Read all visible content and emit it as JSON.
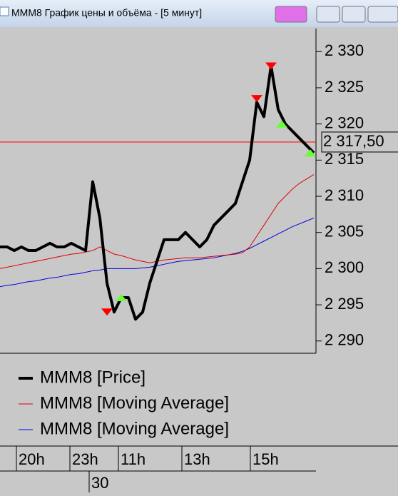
{
  "chart_data": {
    "type": "line",
    "title": "MMM8 График цены и объёма - [5 минут]",
    "x": [
      0,
      1,
      2,
      3,
      4,
      5,
      6,
      7,
      8,
      9,
      10,
      11,
      12,
      13,
      14,
      15,
      16,
      17,
      18,
      19,
      20,
      21,
      22,
      23,
      24,
      25,
      26,
      27,
      28,
      29,
      30,
      31,
      32,
      33,
      34,
      35,
      36,
      37,
      38,
      39,
      40,
      41,
      42,
      43,
      44
    ],
    "series": [
      {
        "name": "MMM8 [Price]",
        "color": "#000000",
        "width": 4,
        "values": [
          2303,
          2303,
          2302.5,
          2303,
          2302.5,
          2302.5,
          2303,
          2303.5,
          2303,
          2303,
          2303.5,
          2303,
          2302.5,
          2312,
          2307,
          2298,
          2294,
          2296,
          2296,
          2293,
          2294,
          2298,
          2301,
          2304,
          2304,
          2304,
          2305,
          2304,
          2303,
          2304,
          2306,
          2307,
          2308,
          2309,
          2312,
          2315,
          2323,
          2321,
          2328,
          2322,
          2320,
          2319,
          2318,
          2317,
          2316
        ]
      },
      {
        "name": "MMM8 [Moving Average]",
        "color": "#e00000",
        "width": 1,
        "values": [
          2300,
          2300.2,
          2300.4,
          2300.6,
          2300.8,
          2301,
          2301.2,
          2301.4,
          2301.6,
          2301.8,
          2302,
          2302.1,
          2302.3,
          2302.5,
          2303,
          2302.5,
          2302,
          2301.8,
          2301.5,
          2301.2,
          2301,
          2300.8,
          2301,
          2301.2,
          2301.3,
          2301.4,
          2301.5,
          2301.5,
          2301.5,
          2301.6,
          2301.7,
          2301.8,
          2301.9,
          2302,
          2302.2,
          2303,
          2304.5,
          2306,
          2307.5,
          2309,
          2310,
          2311,
          2311.8,
          2312.4,
          2313
        ]
      },
      {
        "name": "MMM8 [Moving Average]",
        "color": "#0000e0",
        "width": 1,
        "values": [
          2297.5,
          2297.7,
          2297.8,
          2298,
          2298.2,
          2298.3,
          2298.5,
          2298.7,
          2298.8,
          2299,
          2299.2,
          2299.3,
          2299.5,
          2299.7,
          2299.8,
          2300,
          2300,
          2300,
          2300,
          2300,
          2300.1,
          2300.2,
          2300.4,
          2300.6,
          2300.8,
          2301,
          2301.1,
          2301.2,
          2301.3,
          2301.4,
          2301.5,
          2301.7,
          2301.9,
          2302.1,
          2302.4,
          2302.8,
          2303.3,
          2303.8,
          2304.3,
          2304.8,
          2305.3,
          2305.8,
          2306.2,
          2306.6,
          2307
        ]
      }
    ],
    "markers": {
      "down": {
        "color": "#ff0000",
        "x": [
          15,
          36,
          38
        ],
        "values": [
          2294,
          2323.5,
          2328
        ]
      },
      "up": {
        "color": "#66ff33",
        "x": [
          17,
          39.5,
          43.5
        ],
        "values": [
          2296,
          2320,
          2316
        ]
      }
    },
    "current_price": {
      "value": 2317.5,
      "label": "2 317,50",
      "color": "#ff0000"
    },
    "xlim": [
      0,
      44.3
    ],
    "ylim": [
      2288.3,
      2332
    ],
    "yticks": [
      {
        "value": 2330,
        "label": "2 330"
      },
      {
        "value": 2325,
        "label": "2 325"
      },
      {
        "value": 2320,
        "label": "2 320"
      },
      {
        "value": 2315,
        "label": "2 315"
      },
      {
        "value": 2310,
        "label": "2 310"
      },
      {
        "value": 2305,
        "label": "2 305"
      },
      {
        "value": 2300,
        "label": "2 300"
      },
      {
        "value": 2295,
        "label": "2 295"
      },
      {
        "value": 2290,
        "label": "2 290"
      }
    ],
    "xticks": [
      {
        "value": 3,
        "label": "20h"
      },
      {
        "value": 10.5,
        "label": "23h"
      },
      {
        "value": 17.3,
        "label": "11h"
      },
      {
        "value": 26.2,
        "label": "13h"
      },
      {
        "value": 35.8,
        "label": "15h"
      }
    ],
    "xticks_date": [
      {
        "value": 12.5,
        "label": "30"
      }
    ]
  }
}
